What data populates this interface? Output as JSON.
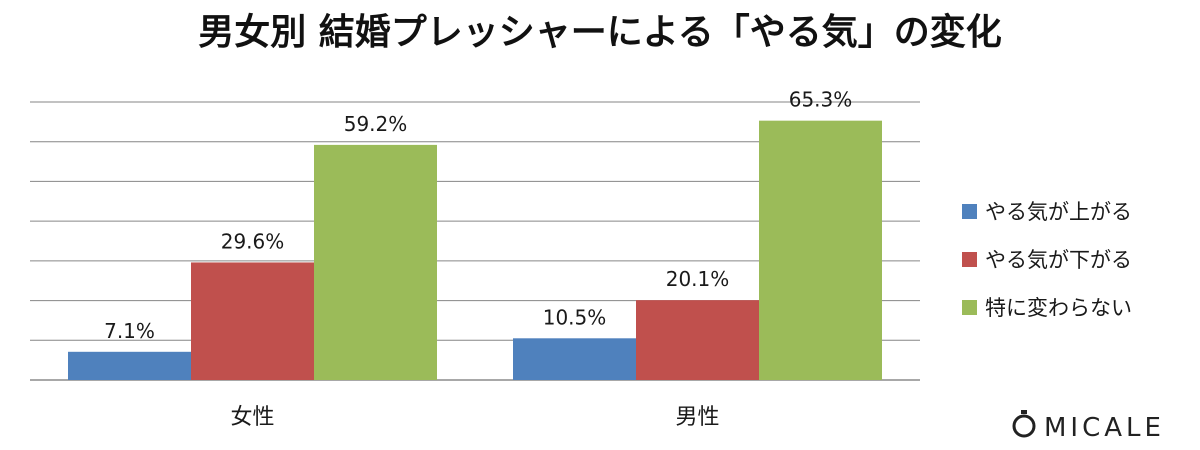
{
  "chart_data": {
    "type": "bar",
    "title": "男女別 結婚プレッシャーによる「やる気」の変化",
    "categories": [
      "女性",
      "男性"
    ],
    "series": [
      {
        "name": "やる気が上がる",
        "values": [
          7.1,
          10.5
        ],
        "labels": [
          "7.1%",
          "10.5%"
        ],
        "color": "#4f81bd"
      },
      {
        "name": "やる気が下がる",
        "values": [
          29.6,
          20.1
        ],
        "labels": [
          "29.6%",
          "20.1%"
        ],
        "color": "#c0504d"
      },
      {
        "name": "特に変わらない",
        "values": [
          59.2,
          65.3
        ],
        "labels": [
          "59.2%",
          "65.3%"
        ],
        "color": "#9bbb59"
      }
    ],
    "ylim": [
      0,
      70
    ],
    "grid": true,
    "legend_position": "right"
  },
  "branding": {
    "logo_text": "MICALE",
    "logo_mark": "O"
  }
}
